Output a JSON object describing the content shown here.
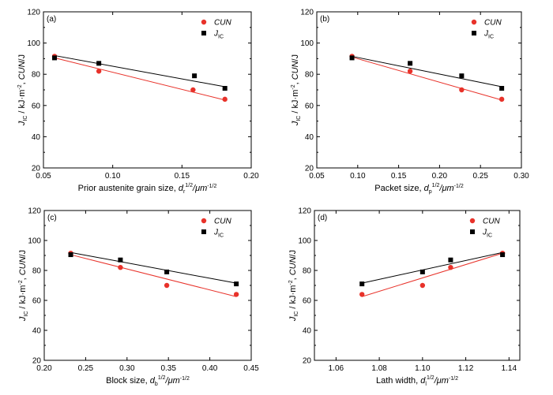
{
  "colors": {
    "cun": "#e8322a",
    "jic": "#000000",
    "cun_line": "#e8322a",
    "jic_line": "#000000",
    "frame": "#000000"
  },
  "legend": {
    "cun": "CUN",
    "jic_main": "J",
    "jic_sub": "IC"
  },
  "y_axis_label": {
    "j": "J",
    "ic": "IC",
    "unit_a": " / kJ·m",
    "exp": "-2",
    "unit_b": ", ",
    "cun": "CUN",
    "unit_c": "/J"
  },
  "chart_data": [
    {
      "type": "scatter",
      "panel": "(a)",
      "xlabel": {
        "prefix": "Prior austenite grain size, ",
        "var": "d",
        "sub": "r",
        "sup": "1/2",
        "unit": "/μm",
        "unit_sup": "-1/2"
      },
      "xlim": [
        0.05,
        0.2
      ],
      "xticks": [
        "0.05",
        "0.10",
        "0.15",
        "0.20"
      ],
      "ylim": [
        20,
        120
      ],
      "yticks": [
        "20",
        "40",
        "60",
        "80",
        "100",
        "120"
      ],
      "legend_position": "top-right",
      "series": [
        {
          "name": "CUN",
          "marker": "circle",
          "x": [
            0.058,
            0.09,
            0.158,
            0.181
          ],
          "y": [
            91.5,
            82,
            70,
            64
          ],
          "fit": [
            [
              0.058,
              90.5
            ],
            [
              0.181,
              63.5
            ]
          ]
        },
        {
          "name": "JIC",
          "marker": "square",
          "x": [
            0.058,
            0.09,
            0.159,
            0.181
          ],
          "y": [
            90.5,
            87,
            79,
            71
          ],
          "fit": [
            [
              0.058,
              92
            ],
            [
              0.181,
              72
            ]
          ]
        }
      ]
    },
    {
      "type": "scatter",
      "panel": "(b)",
      "xlabel": {
        "prefix": "Packet size, ",
        "var": "d",
        "sub": "p",
        "sup": "1/2",
        "unit": "/μm",
        "unit_sup": "-1/2"
      },
      "xlim": [
        0.05,
        0.3
      ],
      "xticks": [
        "0.05",
        "0.10",
        "0.15",
        "0.20",
        "0.25",
        "0.30"
      ],
      "ylim": [
        20,
        120
      ],
      "yticks": [
        "20",
        "40",
        "60",
        "80",
        "100",
        "120"
      ],
      "legend_position": "top-right",
      "series": [
        {
          "name": "CUN",
          "marker": "circle",
          "x": [
            0.093,
            0.164,
            0.227,
            0.276
          ],
          "y": [
            91.5,
            82,
            70,
            64
          ],
          "fit": [
            [
              0.093,
              91
            ],
            [
              0.276,
              63.5
            ]
          ]
        },
        {
          "name": "JIC",
          "marker": "square",
          "x": [
            0.093,
            0.164,
            0.227,
            0.276
          ],
          "y": [
            90.5,
            87,
            79,
            71
          ],
          "fit": [
            [
              0.093,
              91.5
            ],
            [
              0.276,
              72
            ]
          ]
        }
      ]
    },
    {
      "type": "scatter",
      "panel": "(c)",
      "xlabel": {
        "prefix": "Block size, ",
        "var": "d",
        "sub": "b",
        "sup": "1/2",
        "unit": "/μm",
        "unit_sup": "-1/2"
      },
      "xlim": [
        0.2,
        0.45
      ],
      "xticks": [
        "0.20",
        "0.25",
        "0.30",
        "0.35",
        "0.40",
        "0.45"
      ],
      "ylim": [
        20,
        120
      ],
      "yticks": [
        "20",
        "40",
        "60",
        "80",
        "100",
        "120"
      ],
      "legend_position": "top-right",
      "series": [
        {
          "name": "CUN",
          "marker": "circle",
          "x": [
            0.232,
            0.292,
            0.348,
            0.432
          ],
          "y": [
            91.5,
            82,
            70,
            64
          ],
          "fit": [
            [
              0.232,
              90.5
            ],
            [
              0.432,
              62.5
            ]
          ]
        },
        {
          "name": "JIC",
          "marker": "square",
          "x": [
            0.232,
            0.292,
            0.348,
            0.432
          ],
          "y": [
            90.5,
            87,
            79,
            71
          ],
          "fit": [
            [
              0.232,
              92
            ],
            [
              0.432,
              71.5
            ]
          ]
        }
      ]
    },
    {
      "type": "scatter",
      "panel": "(d)",
      "xlabel": {
        "prefix": "Lath width, ",
        "var": "d",
        "sub": "l",
        "sup": "1/2",
        "unit": "/μm",
        "unit_sup": "-1/2"
      },
      "xlim": [
        1.05,
        1.145
      ],
      "xticks": [
        "1.06",
        "1.08",
        "1.10",
        "1.12",
        "1.14"
      ],
      "ylim": [
        20,
        120
      ],
      "yticks": [
        "20",
        "40",
        "60",
        "80",
        "100",
        "120"
      ],
      "legend_position": "top-right",
      "series": [
        {
          "name": "CUN",
          "marker": "circle",
          "x": [
            1.072,
            1.1,
            1.113,
            1.137
          ],
          "y": [
            64,
            70,
            82,
            91.5
          ],
          "fit": [
            [
              1.072,
              62.5
            ],
            [
              1.137,
              91.5
            ]
          ]
        },
        {
          "name": "JIC",
          "marker": "square",
          "x": [
            1.072,
            1.1,
            1.113,
            1.137
          ],
          "y": [
            71,
            79,
            87,
            90.5
          ],
          "fit": [
            [
              1.072,
              71.5
            ],
            [
              1.137,
              92
            ]
          ]
        }
      ]
    }
  ]
}
